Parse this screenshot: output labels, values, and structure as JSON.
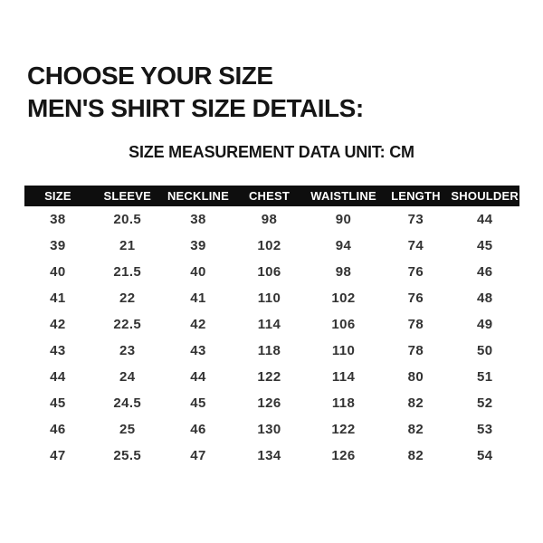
{
  "header": {
    "title_line1": "CHOOSE YOUR SIZE",
    "title_line2": "MEN'S SHIRT SIZE DETAILS:",
    "unit_note": "SIZE MEASUREMENT DATA UNIT: CM"
  },
  "table": {
    "headers": [
      "SIZE",
      "SLEEVE",
      "NECKLINE",
      "CHEST",
      "WAISTLINE",
      "LENGTH",
      "SHOULDER"
    ],
    "rows": [
      [
        "38",
        "20.5",
        "38",
        "98",
        "90",
        "73",
        "44"
      ],
      [
        "39",
        "21",
        "39",
        "102",
        "94",
        "74",
        "45"
      ],
      [
        "40",
        "21.5",
        "40",
        "106",
        "98",
        "76",
        "46"
      ],
      [
        "41",
        "22",
        "41",
        "110",
        "102",
        "76",
        "48"
      ],
      [
        "42",
        "22.5",
        "42",
        "114",
        "106",
        "78",
        "49"
      ],
      [
        "43",
        "23",
        "43",
        "118",
        "110",
        "78",
        "50"
      ],
      [
        "44",
        "24",
        "44",
        "122",
        "114",
        "80",
        "51"
      ],
      [
        "45",
        "24.5",
        "45",
        "126",
        "118",
        "82",
        "52"
      ],
      [
        "46",
        "25",
        "46",
        "130",
        "122",
        "82",
        "53"
      ],
      [
        "47",
        "25.5",
        "47",
        "134",
        "126",
        "82",
        "54"
      ]
    ]
  },
  "colors": {
    "background": "#ffffff",
    "header_bar": "#0e0e0e",
    "header_text": "#ffffff",
    "title_text": "#151515",
    "data_text": "#333333"
  }
}
